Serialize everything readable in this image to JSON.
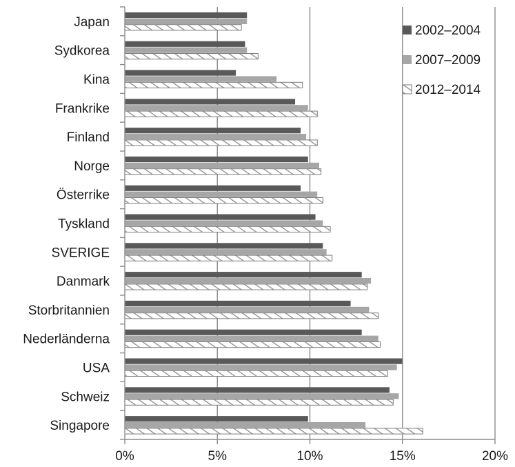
{
  "chart_data": {
    "type": "bar",
    "orientation": "horizontal",
    "title": "",
    "xlabel": "",
    "ylabel": "",
    "xlim": [
      0,
      20
    ],
    "xticks": [
      0,
      5,
      10,
      15,
      20
    ],
    "tick_labels": [
      "0%",
      "5%",
      "10%",
      "15%",
      "20%"
    ],
    "grid": "vertical",
    "legend_position": "top-right",
    "categories": [
      "Japan",
      "Sydkorea",
      "Kina",
      "Frankrike",
      "Finland",
      "Norge",
      "Österrike",
      "Tyskland",
      "SVERIGE",
      "Danmark",
      "Storbritannien",
      "Nederländerna",
      "USA",
      "Schweiz",
      "Singapore"
    ],
    "series": [
      {
        "name": "2002–2004",
        "style": "solid",
        "color": "#595959",
        "values": [
          6.6,
          6.5,
          6.0,
          9.2,
          9.5,
          9.9,
          9.5,
          10.3,
          10.7,
          12.8,
          12.2,
          12.8,
          15.0,
          14.3,
          9.9
        ]
      },
      {
        "name": "2007–2009",
        "style": "solid",
        "color": "#a6a6a6",
        "values": [
          6.6,
          6.6,
          8.2,
          9.9,
          9.8,
          10.5,
          10.4,
          10.7,
          10.9,
          13.3,
          13.2,
          13.7,
          14.7,
          14.8,
          13.0
        ]
      },
      {
        "name": "2012–2014",
        "style": "hatched",
        "color": "#ffffff",
        "values": [
          6.3,
          7.2,
          9.6,
          10.4,
          10.4,
          10.6,
          10.7,
          11.1,
          11.2,
          13.1,
          13.7,
          13.8,
          14.2,
          14.5,
          16.1
        ]
      }
    ]
  }
}
